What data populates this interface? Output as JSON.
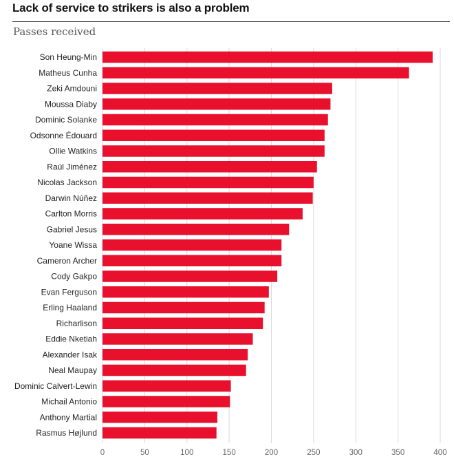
{
  "header": {
    "title": "Lack of service to strikers is also a problem",
    "subtitle": "Passes received"
  },
  "colors": {
    "bar": "#e8102d",
    "grid": "#d9d9d9"
  },
  "chart_data": {
    "type": "bar",
    "orientation": "horizontal",
    "title": "Lack of service to strikers is also a problem",
    "subtitle": "Passes received",
    "xlabel": "",
    "ylabel": "",
    "xlim": [
      0,
      400
    ],
    "ticks": [
      0,
      50,
      100,
      150,
      200,
      250,
      300,
      350,
      400
    ],
    "grid": true,
    "categories": [
      "Son Heung-Min",
      "Matheus Cunha",
      "Zeki Amdouni",
      "Moussa Diaby",
      "Dominic Solanke",
      "Odsonne Édouard",
      "Ollie Watkins",
      "Raúl Jiménez",
      "Nicolas Jackson",
      "Darwin Núñez",
      "Carlton Morris",
      "Gabriel Jesus",
      "Yoane Wissa",
      "Cameron Archer",
      "Cody Gakpo",
      "Evan Ferguson",
      "Erling Haaland",
      "Richarlison",
      "Eddie Nketiah",
      "Alexander Isak",
      "Neal Maupay",
      "Dominic Calvert-Lewin",
      "Michail Antonio",
      "Anthony Martial",
      "Rasmus Højlund"
    ],
    "values": [
      391,
      363,
      272,
      270,
      267,
      263,
      263,
      254,
      250,
      249,
      237,
      221,
      212,
      212,
      207,
      197,
      192,
      190,
      178,
      172,
      170,
      152,
      151,
      136,
      135
    ]
  }
}
